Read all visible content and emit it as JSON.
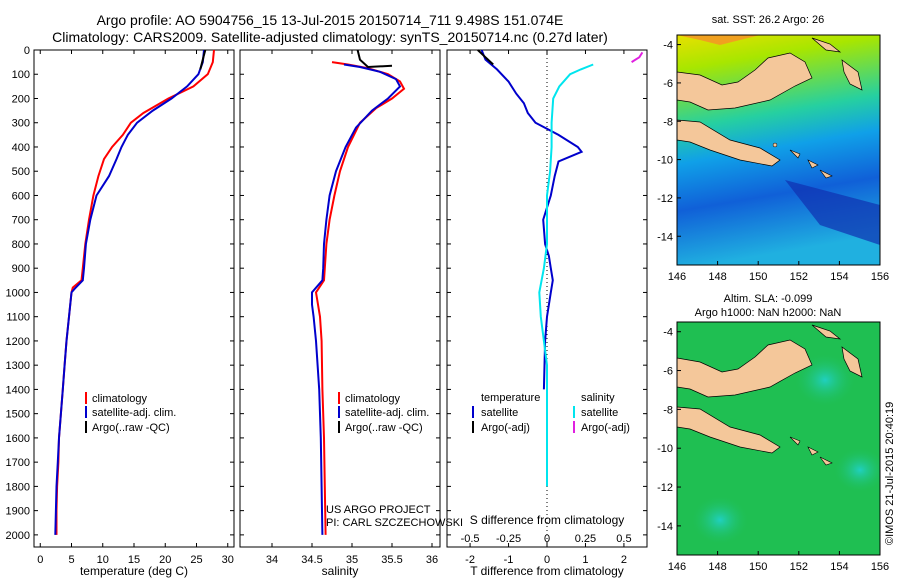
{
  "header": {
    "line1": "Argo profile: AO 5904756_15 13-Jul-2015 20150714_711 9.498S 151.074E",
    "line2": "Climatology: CARS2009. Satellite-adjusted climatology: synTS_20150714.nc (0.27d later)"
  },
  "colors": {
    "climatology": "#ff0000",
    "satellite": "#0000cc",
    "argo": "#000000",
    "satellite_salinity": "#00e5ee",
    "argo_salinity": "#e020e0",
    "land": "#f4c79a"
  },
  "chart_data": [
    {
      "type": "line",
      "id": "temperature",
      "xlabel": "temperature (deg C)",
      "ylabel": "",
      "xlim": [
        -1,
        31
      ],
      "ylim": [
        2050,
        0
      ],
      "xticks": [
        0,
        5,
        10,
        15,
        20,
        25,
        30
      ],
      "xtick_labels": [
        "0",
        "5",
        "10",
        "15",
        "20",
        "25",
        "30"
      ],
      "yticks": [
        0,
        100,
        200,
        300,
        400,
        500,
        600,
        700,
        800,
        900,
        1000,
        1100,
        1200,
        1300,
        1400,
        1500,
        1600,
        1700,
        1800,
        1900,
        2000
      ],
      "ytick_labels": [
        "0",
        "100",
        "200",
        "300",
        "400",
        "500",
        "600",
        "700",
        "800",
        "900",
        "1000",
        "1100",
        "1200",
        "1300",
        "1400",
        "1500",
        "1600",
        "1700",
        "1800",
        "1900",
        "2000"
      ],
      "legend": [
        "climatology",
        "satellite-adj. clim.",
        "Argo(..raw -QC)"
      ],
      "series": [
        {
          "name": "climatology",
          "color": "red",
          "points": [
            [
              27.8,
              0
            ],
            [
              27.6,
              50
            ],
            [
              26.8,
              100
            ],
            [
              24.5,
              150
            ],
            [
              20.5,
              200
            ],
            [
              16.5,
              260
            ],
            [
              14.5,
              300
            ],
            [
              13.2,
              350
            ],
            [
              11.5,
              400
            ],
            [
              10.2,
              450
            ],
            [
              9.3,
              520
            ],
            [
              8.5,
              600
            ],
            [
              7.8,
              700
            ],
            [
              7.2,
              800
            ],
            [
              6.8,
              900
            ],
            [
              6.6,
              950
            ],
            [
              5.2,
              980
            ],
            [
              5.0,
              1000
            ],
            [
              4.6,
              1100
            ],
            [
              4.2,
              1200
            ],
            [
              3.9,
              1300
            ],
            [
              3.6,
              1400
            ],
            [
              3.3,
              1500
            ],
            [
              3.0,
              1600
            ],
            [
              2.9,
              1700
            ],
            [
              2.7,
              1800
            ],
            [
              2.6,
              1900
            ],
            [
              2.6,
              2000
            ]
          ]
        },
        {
          "name": "satellite-adj. clim.",
          "color": "blue",
          "points": [
            [
              26.2,
              0
            ],
            [
              26.0,
              50
            ],
            [
              25.3,
              100
            ],
            [
              23.5,
              150
            ],
            [
              21.0,
              200
            ],
            [
              18.0,
              250
            ],
            [
              15.5,
              300
            ],
            [
              14.0,
              350
            ],
            [
              13.0,
              400
            ],
            [
              12.2,
              450
            ],
            [
              11.0,
              520
            ],
            [
              9.0,
              600
            ],
            [
              8.0,
              700
            ],
            [
              7.3,
              800
            ],
            [
              7.0,
              900
            ],
            [
              6.8,
              950
            ],
            [
              5.5,
              985
            ],
            [
              5.0,
              1000
            ],
            [
              4.6,
              1100
            ],
            [
              4.2,
              1200
            ],
            [
              3.9,
              1300
            ],
            [
              3.6,
              1400
            ],
            [
              3.3,
              1500
            ],
            [
              3.0,
              1600
            ],
            [
              2.8,
              1700
            ],
            [
              2.6,
              1800
            ],
            [
              2.5,
              1900
            ],
            [
              2.4,
              2000
            ]
          ]
        },
        {
          "name": "Argo(..raw -QC)",
          "color": "black",
          "points": [
            [
              26.4,
              0
            ],
            [
              26.1,
              30
            ],
            [
              25.6,
              80
            ]
          ]
        }
      ]
    },
    {
      "type": "line",
      "id": "salinity",
      "xlabel": "salinity",
      "xlim": [
        33.6,
        36.1
      ],
      "ylim": [
        2050,
        0
      ],
      "xticks": [
        34,
        34.5,
        35,
        35.5,
        36
      ],
      "xtick_labels": [
        "34",
        "34.5",
        "35",
        "35.5",
        "36"
      ],
      "legend": [
        "climatology",
        "satellite-adj. clim.",
        "Argo(..raw -QC)"
      ],
      "series": [
        {
          "name": "climatology",
          "color": "red",
          "points": [
            [
              34.75,
              50
            ],
            [
              34.95,
              60
            ],
            [
              35.2,
              75
            ],
            [
              35.45,
              100
            ],
            [
              35.6,
              130
            ],
            [
              35.65,
              160
            ],
            [
              35.5,
              200
            ],
            [
              35.3,
              240
            ],
            [
              35.1,
              300
            ],
            [
              34.95,
              400
            ],
            [
              34.85,
              500
            ],
            [
              34.78,
              600
            ],
            [
              34.72,
              700
            ],
            [
              34.68,
              800
            ],
            [
              34.66,
              900
            ],
            [
              34.65,
              950
            ],
            [
              34.55,
              1000
            ],
            [
              34.6,
              1100
            ],
            [
              34.62,
              1200
            ],
            [
              34.63,
              1400
            ],
            [
              34.65,
              1600
            ],
            [
              34.66,
              1800
            ],
            [
              34.67,
              2000
            ]
          ]
        },
        {
          "name": "satellite-adj. clim.",
          "color": "blue",
          "points": [
            [
              34.9,
              60
            ],
            [
              35.1,
              70
            ],
            [
              35.35,
              90
            ],
            [
              35.55,
              120
            ],
            [
              35.6,
              150
            ],
            [
              35.45,
              200
            ],
            [
              35.25,
              250
            ],
            [
              35.05,
              320
            ],
            [
              34.92,
              400
            ],
            [
              34.8,
              500
            ],
            [
              34.72,
              600
            ],
            [
              34.68,
              700
            ],
            [
              34.65,
              800
            ],
            [
              34.64,
              900
            ],
            [
              34.63,
              950
            ],
            [
              34.5,
              1000
            ],
            [
              34.5,
              1050
            ],
            [
              34.52,
              1100
            ],
            [
              34.55,
              1200
            ],
            [
              34.57,
              1300
            ],
            [
              34.59,
              1400
            ],
            [
              34.6,
              1500
            ],
            [
              34.61,
              1600
            ],
            [
              34.62,
              1800
            ],
            [
              34.63,
              2000
            ]
          ]
        },
        {
          "name": "Argo(..raw -QC)",
          "color": "black",
          "points": [
            [
              35.07,
              0
            ],
            [
              35.1,
              40
            ],
            [
              35.2,
              70
            ],
            [
              35.5,
              65
            ]
          ]
        }
      ],
      "annotations": [
        "US ARGO PROJECT",
        "PI: CARL SZCZECHOWSKI"
      ]
    },
    {
      "type": "line",
      "id": "difference",
      "xlabel": "T difference from climatology",
      "xlabel_top": "S difference from climatology",
      "xlim": [
        -2.6,
        2.6
      ],
      "ylim": [
        2050,
        0
      ],
      "xticks": [
        -2,
        -1,
        0,
        1,
        2
      ],
      "xtick_labels": [
        "-2",
        "-1",
        "0",
        "1",
        "2"
      ],
      "sticks": [
        -0.5,
        -0.25,
        0,
        0.25,
        0.5
      ],
      "stick_labels": [
        "-0.5",
        "-0.25",
        "0",
        "0.25",
        "0.5"
      ],
      "s_scale": 4,
      "legend_titles": [
        "temperature",
        "salinity"
      ],
      "legend": [
        "satellite",
        "Argo(-adj)",
        "satellite",
        "Argo(-adj)"
      ],
      "series": [
        {
          "name": "temperature satellite",
          "color": "blue",
          "scale": "T",
          "points": [
            [
              -1.7,
              0
            ],
            [
              -1.6,
              40
            ],
            [
              -1.3,
              80
            ],
            [
              -1.0,
              130
            ],
            [
              -0.8,
              180
            ],
            [
              -0.6,
              220
            ],
            [
              -0.5,
              260
            ],
            [
              -0.3,
              300
            ],
            [
              0.3,
              350
            ],
            [
              0.8,
              400
            ],
            [
              0.9,
              420
            ],
            [
              0.3,
              460
            ],
            [
              0.2,
              520
            ],
            [
              0.1,
              600
            ],
            [
              0.0,
              650
            ],
            [
              -0.1,
              700
            ],
            [
              -0.05,
              800
            ],
            [
              0.05,
              850
            ],
            [
              0.1,
              900
            ],
            [
              0.15,
              950
            ],
            [
              0.1,
              1000
            ],
            [
              0.0,
              1100
            ],
            [
              -0.05,
              1200
            ],
            [
              -0.08,
              1400
            ]
          ]
        },
        {
          "name": "temperature Argo(-adj)",
          "color": "black",
          "scale": "T",
          "points": [
            [
              -1.8,
              0
            ],
            [
              -1.6,
              30
            ],
            [
              -1.4,
              60
            ]
          ]
        },
        {
          "name": "salinity satellite",
          "color": "cyan",
          "scale": "S",
          "points": [
            [
              0.3,
              60
            ],
            [
              0.22,
              80
            ],
            [
              0.15,
              100
            ],
            [
              0.08,
              150
            ],
            [
              0.04,
              200
            ],
            [
              0.03,
              300
            ],
            [
              0.03,
              400
            ],
            [
              0.02,
              500
            ],
            [
              0.0,
              600
            ],
            [
              0.0,
              700
            ],
            [
              0.0,
              800
            ],
            [
              -0.02,
              900
            ],
            [
              -0.05,
              1000
            ],
            [
              -0.04,
              1100
            ],
            [
              -0.02,
              1200
            ],
            [
              0.0,
              1300
            ],
            [
              0.0,
              1500
            ],
            [
              0.0,
              1700
            ],
            [
              0.0,
              1800
            ]
          ]
        },
        {
          "name": "salinity Argo(-adj)",
          "color": "magenta",
          "scale": "S",
          "points": [
            [
              0.55,
              50
            ],
            [
              0.6,
              30
            ],
            [
              0.62,
              10
            ]
          ]
        }
      ]
    },
    {
      "type": "heatmap",
      "id": "sst-map",
      "title": "sat. SST: 26.2 Argo: 26",
      "xlim": [
        146,
        156
      ],
      "ylim": [
        -15.5,
        -3.5
      ],
      "xticks": [
        146,
        148,
        150,
        152,
        154,
        156
      ],
      "xtick_labels": [
        "146",
        "148",
        "150",
        "152",
        "154",
        "156"
      ],
      "yticks": [
        -4,
        -6,
        -8,
        -10,
        -12,
        -14
      ],
      "ytick_labels": [
        "-4",
        "-6",
        "-8",
        "-10",
        "-12",
        "-14"
      ],
      "float_position": [
        151.074,
        -9.498
      ]
    },
    {
      "type": "heatmap",
      "id": "sla-map",
      "title_line1": "Altim. SLA: -0.099",
      "title_line2": "Argo h1000: NaN h2000: NaN",
      "xlim": [
        146,
        156
      ],
      "ylim": [
        -15.5,
        -3.5
      ],
      "xticks": [
        146,
        148,
        150,
        152,
        154,
        156
      ],
      "xtick_labels": [
        "146",
        "148",
        "150",
        "152",
        "154",
        "156"
      ],
      "yticks": [
        -4,
        -6,
        -8,
        -10,
        -12,
        -14
      ],
      "ytick_labels": [
        "-4",
        "-6",
        "-8",
        "-10",
        "-12",
        "-14"
      ]
    }
  ],
  "footer": {
    "stamp": "©IMOS 21-Jul-2015 20:40:19"
  }
}
